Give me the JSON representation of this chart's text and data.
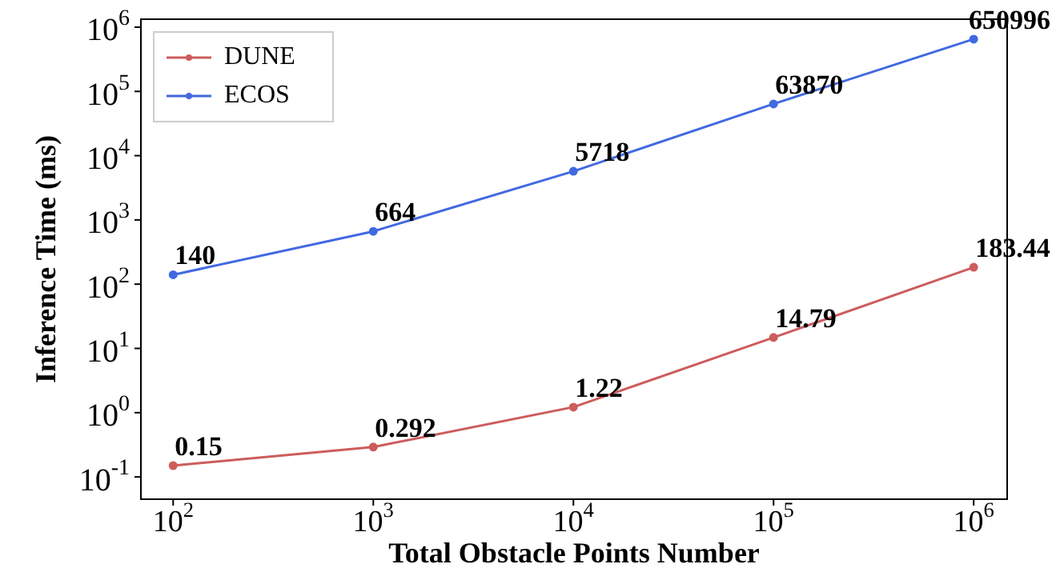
{
  "chart_data": {
    "type": "line",
    "xlabel": "Total Obstacle Points Number",
    "ylabel": "Inference Time (ms)",
    "x": [
      100,
      1000,
      10000,
      100000,
      1000000
    ],
    "series": [
      {
        "name": "DUNE",
        "color": "#cd5c5c",
        "values": [
          0.15,
          0.292,
          1.22,
          14.79,
          183.44
        ],
        "value_labels": [
          "0.15",
          "0.292",
          "1.22",
          "14.79",
          "183.44"
        ]
      },
      {
        "name": "ECOS",
        "color": "#4169e1",
        "values": [
          140,
          664,
          5718,
          63870,
          650996
        ],
        "value_labels": [
          "140",
          "664",
          "5718",
          "63870",
          "650996"
        ]
      }
    ],
    "log": "xy",
    "xlim": [
      69,
      1470000
    ],
    "ylim": [
      0.045,
      1330000
    ],
    "xticks": [
      {
        "value": 100,
        "label": "10$^{2}$"
      },
      {
        "value": 1000,
        "label": "10$^{3}$"
      },
      {
        "value": 10000,
        "label": "10$^{4}$"
      },
      {
        "value": 100000,
        "label": "10$^{5}$"
      },
      {
        "value": 1000000,
        "label": "10$^{6}$"
      }
    ],
    "yticks": [
      {
        "value": 0.1,
        "label": "10$^{-1}$"
      },
      {
        "value": 1,
        "label": "10$^{0}$"
      },
      {
        "value": 10,
        "label": "10$^{1}$"
      },
      {
        "value": 100,
        "label": "10$^{2}$"
      },
      {
        "value": 1000,
        "label": "10$^{3}$"
      },
      {
        "value": 10000,
        "label": "10$^{4}$"
      },
      {
        "value": 100000,
        "label": "10$^{5}$"
      },
      {
        "value": 1000000,
        "label": "10$^{6}$"
      }
    ],
    "grid": false,
    "legend": "top left",
    "marker": "circle",
    "line_style": "solid"
  }
}
